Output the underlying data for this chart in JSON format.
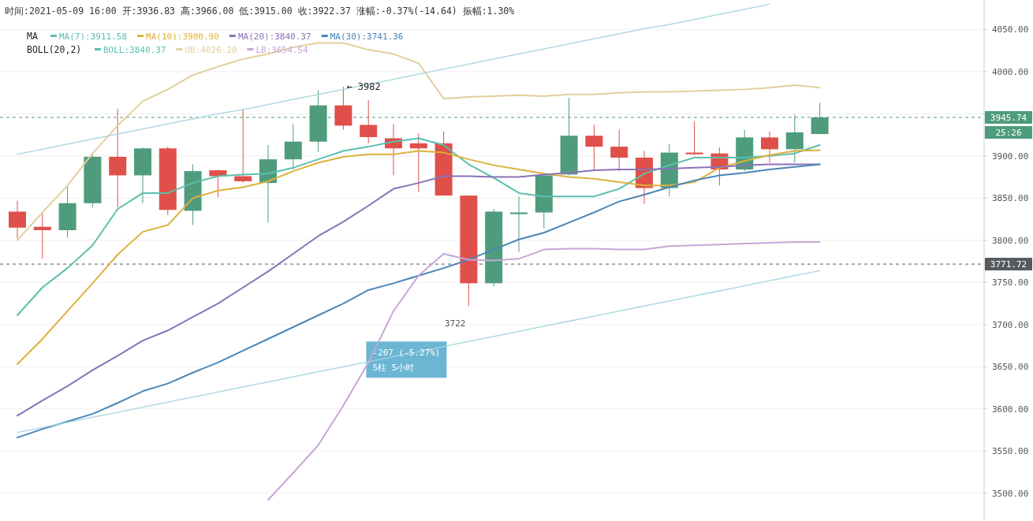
{
  "chart_data": {
    "type": "candlestick",
    "title": "时间:2021-05-09 16:00  开:3936.83  高:3966.00  低:3915.00  收:3922.37  涨幅:-0.37%(-14.64)  振幅:1.30%",
    "categories": [
      null,
      null,
      null,
      null,
      null,
      null,
      null,
      null,
      null,
      null,
      null,
      null,
      null,
      null,
      null,
      null,
      null,
      null,
      null,
      null,
      null,
      null,
      null,
      null,
      null,
      null,
      null,
      null,
      null,
      null,
      null,
      null,
      null
    ],
    "ohlc": [
      [
        3834,
        3847,
        3802,
        3815
      ],
      [
        3816,
        3832,
        3778,
        3812
      ],
      [
        3812,
        3864,
        3803,
        3844
      ],
      [
        3844,
        3902,
        3839,
        3899
      ],
      [
        3899,
        3956,
        3839,
        3877
      ],
      [
        3877,
        3910,
        3844,
        3909
      ],
      [
        3909,
        3911,
        3830,
        3836
      ],
      [
        3835,
        3890,
        3818,
        3882
      ],
      [
        3883,
        3884,
        3851,
        3876
      ],
      [
        3876,
        3956,
        3868,
        3870
      ],
      [
        3868,
        3913,
        3821,
        3896
      ],
      [
        3896,
        3938,
        3884,
        3917
      ],
      [
        3917,
        3978,
        3905,
        3960
      ],
      [
        3960,
        3982,
        3931,
        3936
      ],
      [
        3936.83,
        3966,
        3915,
        3922.37
      ],
      [
        3921,
        3938,
        3877,
        3909
      ],
      [
        3915,
        3927,
        3857,
        3909
      ],
      [
        3915,
        3929,
        3853,
        3853
      ],
      [
        3853,
        3853,
        3722,
        3749
      ],
      [
        3749,
        3837,
        3745,
        3834
      ],
      [
        3831,
        3852,
        3786,
        3833
      ],
      [
        3833,
        3878,
        3814,
        3877
      ],
      [
        3878,
        3969,
        3877,
        3924
      ],
      [
        3924,
        3937,
        3884,
        3911
      ],
      [
        3911,
        3931,
        3882,
        3898
      ],
      [
        3898,
        3906,
        3843,
        3862
      ],
      [
        3862,
        3914,
        3852,
        3904
      ],
      [
        3904,
        3941,
        3901,
        3902
      ],
      [
        3903,
        3910,
        3865,
        3884
      ],
      [
        3884,
        3931,
        3882,
        3922
      ],
      [
        3922,
        3929,
        3892,
        3908
      ],
      [
        3908,
        3949,
        3892,
        3928
      ],
      [
        3926,
        3963,
        3926,
        3945.74
      ]
    ],
    "colors": [
      "#e0504a",
      "#e0504a",
      "#4e9c7c",
      "#4e9c7c",
      "#e0504a",
      "#4e9c7c",
      "#e0504a",
      "#4e9c7c",
      "#e0504a",
      "#e0504a",
      "#4e9c7c",
      "#4e9c7c",
      "#4e9c7c",
      "#e0504a",
      "#e0504a",
      "#e0504a",
      "#e0504a",
      "#e0504a",
      "#e0504a",
      "#4e9c7c",
      "#4e9c7c",
      "#4e9c7c",
      "#4e9c7c",
      "#e0504a",
      "#e0504a",
      "#e0504a",
      "#4e9c7c",
      "#e0504a",
      "#e0504a",
      "#4e9c7c",
      "#e0504a",
      "#4e9c7c",
      "#4e9c7c"
    ],
    "series": [
      {
        "name": "MA(7):3911.58",
        "color": "#5cbfae",
        "type": "line",
        "values": [
          3711,
          3744,
          3767,
          3794,
          3837,
          3856,
          3856,
          3868,
          3876,
          3878,
          3879,
          3886,
          3896,
          3906,
          3911,
          3917,
          3921,
          3913,
          3890,
          3874,
          3856,
          3852,
          3852,
          3852,
          3861,
          3879,
          3889,
          3898,
          3898,
          3898,
          3900,
          3903,
          3913
        ]
      },
      {
        "name": "MA(10):3900.90",
        "color": "#ddb13c",
        "type": "line",
        "values": [
          3653,
          3683,
          3716,
          3749,
          3783,
          3810,
          3818,
          3850,
          3859,
          3863,
          3870,
          3882,
          3892,
          3899,
          3902,
          3902,
          3906,
          3904,
          3896,
          3889,
          3884,
          3879,
          3875,
          3873,
          3869,
          3865,
          3865,
          3869,
          3886,
          3894,
          3901,
          3906,
          3907
        ]
      },
      {
        "name": "BOLL:3840.37",
        "color": "#5cbfae",
        "type": "line",
        "values": [
          null,
          null,
          null,
          null,
          null,
          null,
          null,
          null,
          null,
          null,
          null,
          null,
          null,
          null,
          null,
          null,
          null,
          null,
          null,
          null,
          null,
          null,
          null,
          null,
          null,
          null,
          null,
          null,
          null,
          null,
          null,
          null,
          null
        ]
      },
      {
        "name": "MA(20):3840.37",
        "color": "#8a72b8",
        "type": "line",
        "values": [
          3592,
          3610,
          3627,
          3646,
          3663,
          3681,
          3693,
          3709,
          3725,
          3744,
          3763,
          3784,
          3805,
          3822,
          3841,
          3861,
          3868,
          3876,
          3876,
          3875,
          3875,
          3878,
          3880,
          3883,
          3884,
          3884,
          3885,
          3886,
          3887,
          3889,
          3890,
          3890,
          3890
        ]
      },
      {
        "name": "MA(30):3741.36",
        "color": "#4a86b8",
        "type": "line",
        "values": [
          3566,
          3576,
          3585,
          3594,
          3607,
          3621,
          3630,
          3643,
          3655,
          3669,
          3683,
          3697,
          3711,
          3725,
          3741,
          3749,
          3758,
          3767,
          3777,
          3789,
          3801,
          3809,
          3821,
          3833,
          3846,
          3854,
          3863,
          3871,
          3877,
          3880,
          3884,
          3887,
          3890
        ]
      },
      {
        "name": "UB:4026.20",
        "color": "#e3cf9c",
        "type": "line",
        "values": [
          3800,
          3833,
          3865,
          3903,
          3936,
          3965,
          3979,
          3996,
          4006,
          4015,
          4021,
          4029,
          4034,
          4034,
          4026,
          4021,
          4010,
          3968,
          3970,
          3971,
          3972,
          3971,
          3973,
          3973,
          3975,
          3976,
          3976,
          3977,
          3978,
          3979,
          3981,
          3984,
          3981
        ]
      },
      {
        "name": "LB:3654.54",
        "color": "#c7a6d6",
        "type": "line",
        "values": [
          null,
          null,
          null,
          null,
          null,
          null,
          null,
          null,
          null,
          null,
          3492,
          3524,
          3557,
          3604,
          3655,
          3716,
          3758,
          3784,
          3777,
          3776,
          3778,
          3789,
          3790,
          3790,
          3789,
          3789,
          3793,
          3794,
          3795,
          3796,
          3797,
          3798,
          3798
        ]
      },
      {
        "color": "#a3d6df",
        "type": "line",
        "values": [
          3902,
          3908,
          3914,
          3920,
          3926,
          3932,
          3938,
          3944,
          3950,
          3955,
          3961,
          3967,
          3973,
          3979,
          3985,
          3991,
          3997,
          4003,
          4009,
          4015,
          4021,
          4027,
          4033,
          4039,
          4045,
          4051,
          4056,
          4062,
          4068,
          4074,
          4080,
          null,
          null
        ]
      },
      {
        "color": "#a3d6df",
        "type": "line",
        "values": [
          3572,
          3578,
          3584,
          3590,
          3596,
          3602,
          3608,
          3614,
          3620,
          3626,
          3632,
          3638,
          3644,
          3650,
          3656,
          3662,
          3668,
          3674,
          3680,
          3686,
          3692,
          3698,
          3704,
          3710,
          3716,
          3722,
          3728,
          3734,
          3740,
          3746,
          3752,
          3758,
          3764
        ]
      }
    ],
    "ylim": [
      3467,
      4085
    ],
    "yticks": [
      {
        "value": 3500,
        "label": "3500.00"
      },
      {
        "value": 3550,
        "label": "3550.00"
      },
      {
        "value": 3600,
        "label": "3600.00"
      },
      {
        "value": 3650,
        "label": "3650.00"
      },
      {
        "value": 3700,
        "label": "3700.00"
      },
      {
        "value": 3750,
        "label": "3750.00"
      },
      {
        "value": 3800,
        "label": "3800.00"
      },
      {
        "value": 3850,
        "label": "3850.00"
      },
      {
        "value": 3900,
        "label": "3900.00"
      },
      {
        "value": 3950,
        "label": null
      },
      {
        "value": 4000,
        "label": "4000.00"
      },
      {
        "value": 4050,
        "label": "4050.00"
      }
    ],
    "ref_lines": [
      {
        "axis": "y",
        "value": 3945.74,
        "label": "3945.74",
        "color": "#4e9c7c",
        "line_style": "dashed"
      },
      {
        "axis": "y",
        "value": 3771.72,
        "label": "3771.72",
        "color": "#555a60",
        "line_style": "dashed"
      }
    ],
    "annotations": [
      "MA",
      "BOLL(20,2)",
      {
        "text": "← 3982",
        "y": 3982
      },
      "3722",
      "-207 (-5.27%)",
      "5柱 5小时",
      "25:26"
    ],
    "tick_labels": "y",
    "grid": "y",
    "legend": "top left"
  }
}
